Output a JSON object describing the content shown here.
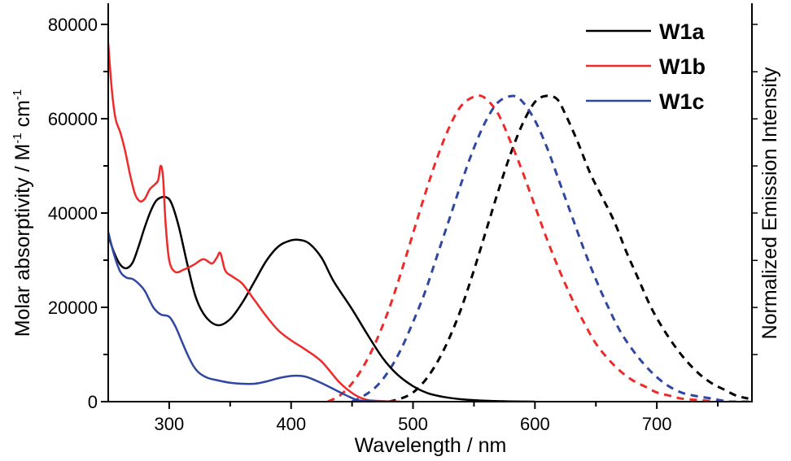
{
  "chart_data": {
    "type": "line",
    "title": "",
    "xlabel": "Wavelength / nm",
    "ylabel": "Molar absorptivity / M",
    "ylabel_sup1": "-1",
    "ylabel_mid": " cm",
    "ylabel_sup2": "-1",
    "y2label": "Normalized Emission Intensity",
    "xlim": [
      250,
      778
    ],
    "ylim": [
      0,
      80000
    ],
    "y2lim": [
      0,
      1.234
    ],
    "xticks": [
      300,
      400,
      500,
      600,
      700
    ],
    "xtick_labels": [
      "300",
      "400",
      "500",
      "600",
      "700"
    ],
    "xminor": [
      250,
      350,
      450,
      550,
      650,
      750
    ],
    "yticks": [
      0,
      20000,
      40000,
      60000,
      80000
    ],
    "ytick_labels": [
      "0",
      "20000",
      "40000",
      "60000",
      "80000"
    ],
    "yminor": [
      10000,
      30000,
      50000,
      70000
    ],
    "y2ticks": [
      0.154,
      0.308,
      0.462,
      0.617,
      0.771,
      0.925,
      1.079,
      1.234
    ],
    "grid": false,
    "legend": {
      "position": "top-right",
      "entries": [
        "W1a",
        "W1b",
        "W1c"
      ]
    },
    "colors": {
      "W1a": "#000000",
      "W1b": "#ee2b2b",
      "W1c": "#2f47a0"
    },
    "absorption": [
      {
        "name": "W1a",
        "axis": "left",
        "style": "solid",
        "x": [
          250,
          255,
          260,
          265,
          270,
          275,
          280,
          285,
          290,
          297,
          302,
          308,
          315,
          322,
          330,
          340,
          350,
          360,
          370,
          380,
          390,
          400,
          407,
          415,
          425,
          435,
          450,
          462,
          475,
          487,
          500,
          512,
          525,
          540,
          555,
          575,
          600
        ],
        "y": [
          35200,
          31500,
          29000,
          28300,
          29500,
          33000,
          37000,
          40500,
          42800,
          43400,
          42000,
          37000,
          29000,
          22000,
          18000,
          16200,
          17500,
          21000,
          25500,
          30000,
          33000,
          34200,
          34300,
          33500,
          30500,
          25500,
          19600,
          14500,
          9300,
          5800,
          3300,
          1800,
          1000,
          500,
          250,
          80,
          0
        ]
      },
      {
        "name": "W1b",
        "axis": "left",
        "style": "solid",
        "x": [
          250,
          253,
          256,
          260,
          264,
          268,
          272,
          276,
          280,
          284,
          288,
          291,
          293,
          295,
          297,
          300,
          305,
          312,
          320,
          328,
          335,
          339,
          342,
          346,
          352,
          360,
          370,
          380,
          390,
          400,
          412,
          425,
          440,
          452,
          462,
          475,
          490
        ],
        "y": [
          76000,
          66000,
          60000,
          57000,
          53000,
          48000,
          44000,
          42500,
          43000,
          45000,
          46000,
          47000,
          50000,
          47500,
          38000,
          30000,
          27500,
          28000,
          29000,
          30200,
          29300,
          30500,
          31500,
          27800,
          26500,
          25000,
          21500,
          18000,
          15000,
          13000,
          11000,
          8500,
          4000,
          1500,
          400,
          100,
          0
        ]
      },
      {
        "name": "W1c",
        "axis": "left",
        "style": "solid",
        "x": [
          250,
          255,
          260,
          265,
          270,
          275,
          280,
          287,
          293,
          300,
          305,
          310,
          315,
          320,
          325,
          332,
          340,
          350,
          360,
          370,
          380,
          390,
          398,
          405,
          412,
          420,
          430,
          440,
          448,
          455,
          465,
          480
        ],
        "y": [
          36000,
          31000,
          27500,
          26300,
          26000,
          25000,
          23500,
          20000,
          18500,
          18000,
          16000,
          13000,
          10000,
          7500,
          6000,
          5000,
          4500,
          4000,
          3800,
          3800,
          4300,
          5000,
          5400,
          5500,
          5300,
          4500,
          3300,
          2000,
          1000,
          300,
          100,
          0
        ]
      }
    ],
    "emission": [
      {
        "name": "W1a",
        "axis": "right",
        "style": "dashed",
        "x": [
          480,
          490,
          500,
          510,
          520,
          530,
          540,
          550,
          560,
          570,
          580,
          590,
          600,
          609,
          618,
          625,
          635,
          645,
          655,
          665,
          675,
          685,
          695,
          705,
          715,
          725,
          735,
          745,
          755,
          765,
          775
        ],
        "y": [
          0.0,
          0.01,
          0.03,
          0.07,
          0.13,
          0.21,
          0.31,
          0.43,
          0.56,
          0.69,
          0.81,
          0.91,
          0.98,
          1.0,
          0.99,
          0.94,
          0.85,
          0.75,
          0.67,
          0.59,
          0.49,
          0.4,
          0.31,
          0.24,
          0.18,
          0.13,
          0.09,
          0.06,
          0.04,
          0.02,
          0.01
        ]
      },
      {
        "name": "W1b",
        "axis": "right",
        "style": "dashed",
        "x": [
          430,
          440,
          450,
          460,
          470,
          480,
          490,
          500,
          510,
          520,
          530,
          540,
          552,
          560,
          570,
          580,
          590,
          600,
          610,
          620,
          630,
          640,
          650,
          660,
          670,
          680,
          690,
          700,
          710,
          720,
          735,
          750,
          765,
          778
        ],
        "y": [
          0.0,
          0.02,
          0.06,
          0.12,
          0.2,
          0.3,
          0.42,
          0.55,
          0.68,
          0.8,
          0.9,
          0.97,
          1.0,
          0.99,
          0.94,
          0.85,
          0.75,
          0.64,
          0.53,
          0.43,
          0.34,
          0.26,
          0.19,
          0.14,
          0.1,
          0.07,
          0.05,
          0.03,
          0.02,
          0.01,
          0.005,
          0.0,
          0.0,
          0.0
        ]
      },
      {
        "name": "W1c",
        "axis": "right",
        "style": "dashed",
        "x": [
          450,
          460,
          470,
          480,
          490,
          500,
          510,
          520,
          530,
          540,
          550,
          560,
          570,
          582,
          590,
          600,
          610,
          620,
          630,
          640,
          650,
          660,
          670,
          680,
          690,
          700,
          710,
          720,
          730,
          745,
          760,
          775
        ],
        "y": [
          0.0,
          0.02,
          0.05,
          0.1,
          0.17,
          0.26,
          0.36,
          0.48,
          0.6,
          0.72,
          0.83,
          0.92,
          0.98,
          1.0,
          0.98,
          0.92,
          0.83,
          0.72,
          0.61,
          0.5,
          0.4,
          0.31,
          0.23,
          0.17,
          0.12,
          0.08,
          0.05,
          0.03,
          0.02,
          0.01,
          0.0,
          0.0
        ]
      }
    ]
  }
}
